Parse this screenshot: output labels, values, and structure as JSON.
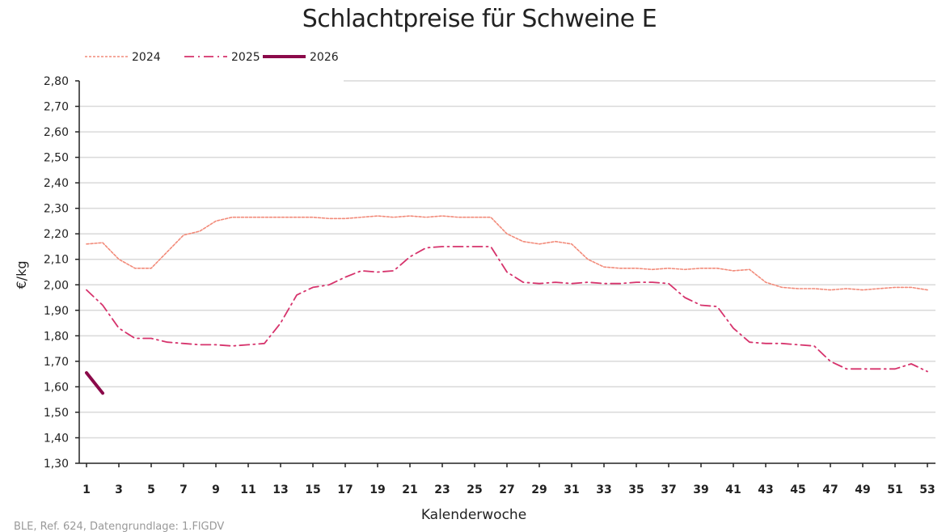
{
  "chart_data": {
    "type": "line",
    "title": "Schlachtpreise für Schweine E",
    "xlabel": "Kalenderwoche",
    "ylabel": "€/kg",
    "ylim": [
      1.3,
      2.8
    ],
    "ytick_step": 0.1,
    "xlim": [
      1,
      53
    ],
    "x_tick_labels": [
      "1",
      "3",
      "5",
      "7",
      "9",
      "11",
      "13",
      "15",
      "17",
      "19",
      "21",
      "23",
      "25",
      "27",
      "29",
      "31",
      "33",
      "35",
      "37",
      "39",
      "41",
      "43",
      "45",
      "47",
      "49",
      "51",
      "53"
    ],
    "grid": true,
    "legend": "top-left",
    "series": [
      {
        "name": "2024",
        "color": "#f28b7a",
        "style": "dotted",
        "values": [
          2.16,
          2.165,
          2.1,
          2.065,
          2.065,
          2.13,
          2.195,
          2.21,
          2.25,
          2.265,
          2.265,
          2.265,
          2.265,
          2.265,
          2.265,
          2.26,
          2.26,
          2.265,
          2.27,
          2.265,
          2.27,
          2.265,
          2.27,
          2.265,
          2.265,
          2.265,
          2.2,
          2.17,
          2.16,
          2.17,
          2.16,
          2.1,
          2.07,
          2.065,
          2.065,
          2.06,
          2.065,
          2.06,
          2.065,
          2.065,
          2.055,
          2.06,
          2.01,
          1.99,
          1.985,
          1.985,
          1.98,
          1.985,
          1.98,
          1.985,
          1.99,
          1.99,
          1.98
        ]
      },
      {
        "name": "2025",
        "color": "#d6336c",
        "style": "dashdot",
        "values": [
          1.98,
          1.92,
          1.83,
          1.79,
          1.79,
          1.775,
          1.77,
          1.765,
          1.765,
          1.76,
          1.765,
          1.77,
          1.85,
          1.96,
          1.99,
          2.0,
          2.03,
          2.055,
          2.05,
          2.055,
          2.11,
          2.145,
          2.15,
          2.15,
          2.15,
          2.15,
          2.05,
          2.01,
          2.005,
          2.01,
          2.005,
          2.01,
          2.005,
          2.005,
          2.01,
          2.01,
          2.005,
          1.95,
          1.92,
          1.915,
          1.83,
          1.775,
          1.77,
          1.77,
          1.765,
          1.76,
          1.7,
          1.67,
          1.67,
          1.67,
          1.67,
          1.69,
          1.66
        ]
      },
      {
        "name": "2026",
        "color": "#8b0a4a",
        "style": "solid",
        "values": [
          1.655,
          1.575
        ]
      }
    ]
  },
  "source": "BLE, Ref. 624, Datengrundlage: 1.FlGDV"
}
